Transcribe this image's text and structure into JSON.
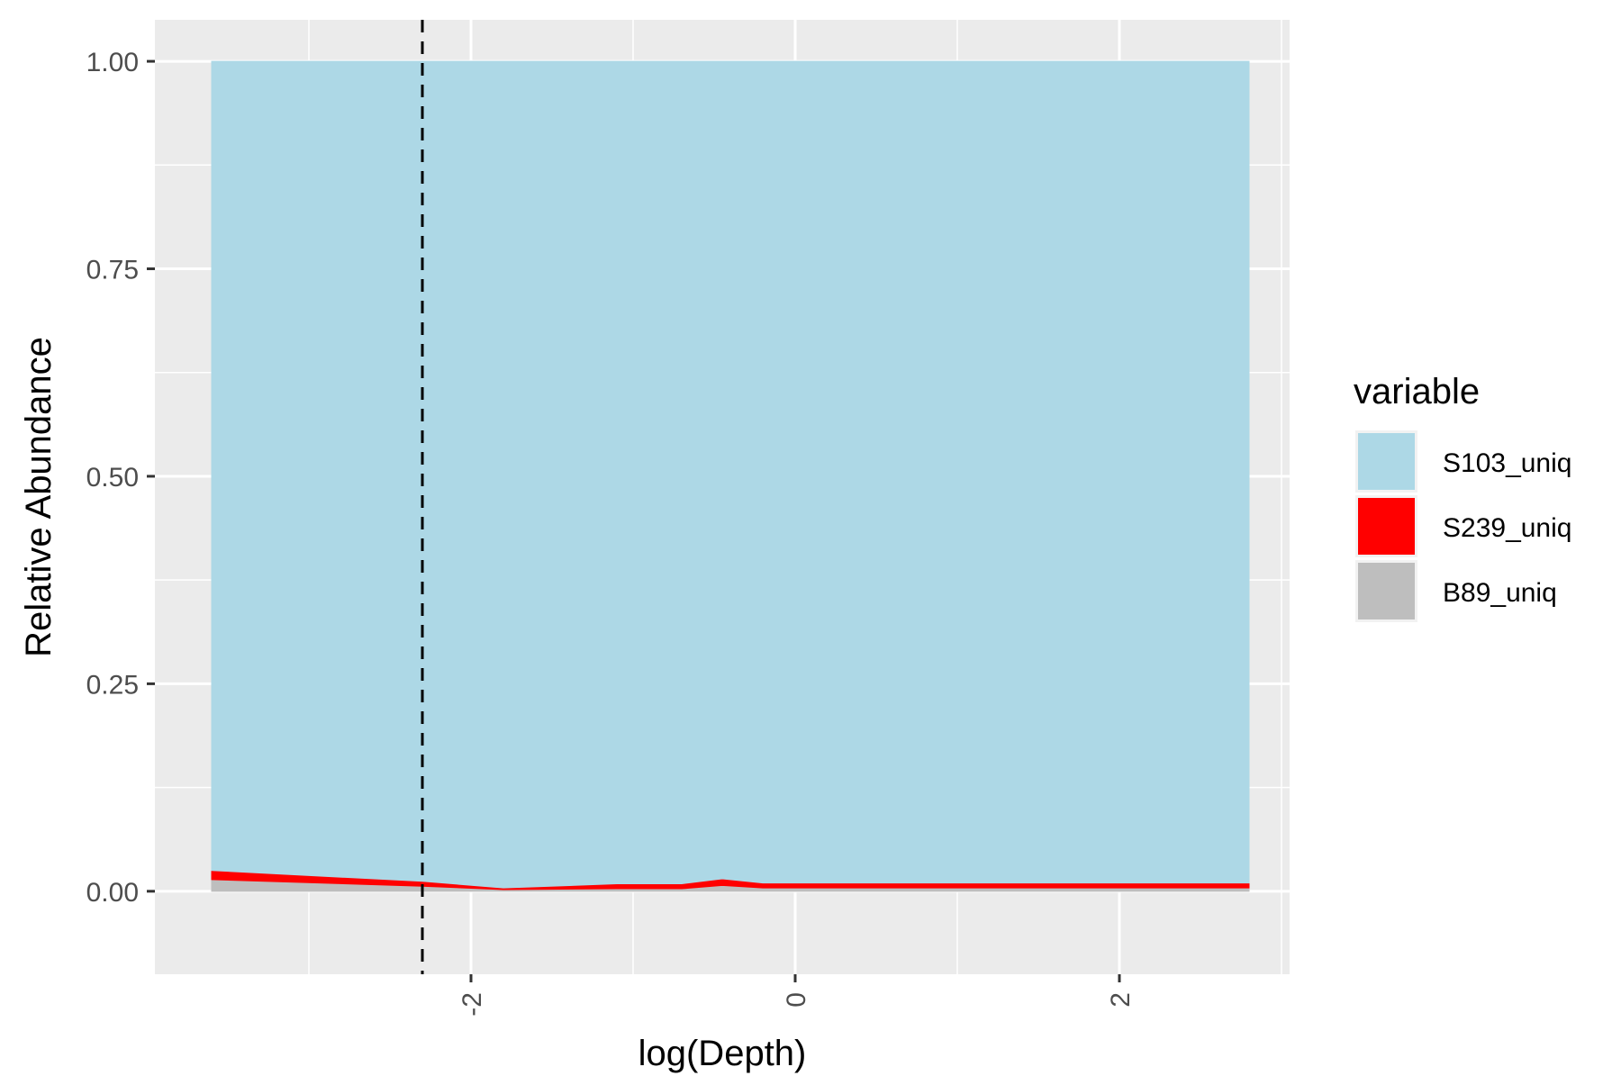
{
  "chart_data": {
    "type": "area",
    "stacked": true,
    "xlabel": "log(Depth)",
    "ylabel": "Relative Abundance",
    "xlim": [
      -3.95,
      3.05
    ],
    "ylim": [
      -0.1,
      1.05
    ],
    "x_ticks": [
      -2,
      0,
      2
    ],
    "x_tick_labels": [
      "-2",
      "0",
      "2"
    ],
    "y_ticks": [
      0,
      0.25,
      0.5,
      0.75,
      1.0
    ],
    "y_tick_labels": [
      "0.00",
      "0.25",
      "0.50",
      "0.75",
      "1.00"
    ],
    "x_minor_breaks": [
      -3,
      -1,
      1,
      3
    ],
    "y_minor_breaks": [
      0.125,
      0.375,
      0.625,
      0.875
    ],
    "vline": {
      "x": -2.3,
      "style": "dashed",
      "color": "#000000"
    },
    "grid": true,
    "panel_background": "#EBEBEB",
    "legend": {
      "title": "variable",
      "position": "right",
      "entries": [
        "S103_uniq",
        "S239_uniq",
        "B89_uniq"
      ]
    },
    "x": [
      -3.6,
      -2.3,
      -1.8,
      -1.1,
      -0.7,
      -0.45,
      -0.2,
      2.8
    ],
    "series": [
      {
        "name": "B89_uniq",
        "color": "#BEBEBE",
        "values": [
          0.014,
          0.006,
          0.002,
          0.003,
          0.003,
          0.007,
          0.004,
          0.004
        ]
      },
      {
        "name": "S239_uniq",
        "color": "#FF0000",
        "values": [
          0.011,
          0.006,
          0.002,
          0.006,
          0.006,
          0.008,
          0.006,
          0.006
        ]
      },
      {
        "name": "S103_uniq",
        "color": "#ADD8E6",
        "values": [
          0.975,
          0.988,
          0.996,
          0.991,
          0.991,
          0.985,
          0.99,
          0.99
        ]
      }
    ]
  }
}
